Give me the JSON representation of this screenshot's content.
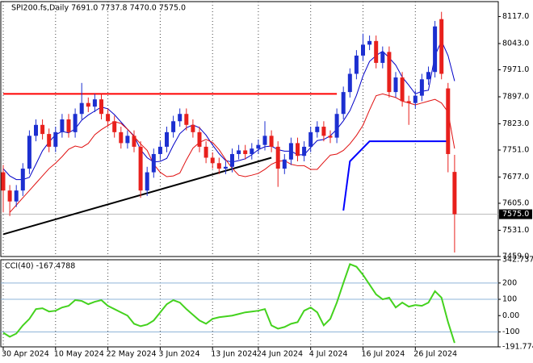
{
  "chart_data": [
    {
      "type": "candlestick",
      "title": "SPI200.fs,Daily  7691.0 7737.8 7470.0 7575.0",
      "categories": [
        "30 Apr 2024",
        null,
        null,
        null,
        null,
        null,
        null,
        null,
        "10 May 2024",
        null,
        null,
        null,
        null,
        null,
        null,
        null,
        "22 May 2024",
        null,
        null,
        null,
        null,
        null,
        null,
        null,
        "3 Jun 2024",
        null,
        null,
        null,
        null,
        null,
        null,
        null,
        "13 Jun 2024",
        null,
        null,
        null,
        null,
        null,
        null,
        "24 Jun 2024",
        null,
        null,
        null,
        null,
        null,
        null,
        null,
        "4 Jul 2024",
        null,
        null,
        null,
        null,
        null,
        null,
        null,
        "16 Jul 2024",
        null,
        null,
        null,
        null,
        null,
        null,
        null,
        "26 Jul 2024",
        null,
        null,
        null,
        null,
        null,
        null
      ],
      "open": [
        7690,
        7640,
        7610,
        7640,
        7700,
        7790,
        7820,
        7795,
        7760,
        7800,
        7835,
        7800,
        7850,
        7880,
        7870,
        7890,
        7850,
        7830,
        7800,
        7770,
        7790,
        7760,
        7640,
        7690,
        7740,
        7760,
        7800,
        7830,
        7850,
        7820,
        7800,
        7760,
        7730,
        7715,
        7700,
        7705,
        7740,
        7750,
        7740,
        7755,
        7765,
        7790,
        7760,
        7700,
        7725,
        7770,
        7735,
        7760,
        7800,
        7815,
        7790,
        7785,
        7850,
        7910,
        7960,
        8010,
        8040,
        8050,
        7990,
        8020,
        7910,
        7950,
        7885,
        7880,
        7900,
        7945,
        7965,
        8110,
        7920,
        7691
      ],
      "high": [
        7710,
        7655,
        7655,
        7715,
        7805,
        7835,
        7835,
        7810,
        7815,
        7850,
        7850,
        7865,
        7935,
        7895,
        7905,
        7905,
        7865,
        7845,
        7815,
        7805,
        7805,
        7775,
        7705,
        7755,
        7775,
        7815,
        7845,
        7865,
        7865,
        7835,
        7815,
        7775,
        7745,
        7730,
        7720,
        7755,
        7765,
        7765,
        7770,
        7780,
        7830,
        7805,
        7775,
        7740,
        7785,
        7785,
        7775,
        7815,
        7830,
        7830,
        7805,
        7865,
        7925,
        7975,
        8025,
        8070,
        8065,
        8065,
        8035,
        8035,
        7965,
        7965,
        7900,
        7915,
        7960,
        7980,
        8105,
        8130,
        7935,
        7737.8
      ],
      "low": [
        7580,
        7570,
        7595,
        7625,
        7685,
        7775,
        7780,
        7745,
        7745,
        7785,
        7785,
        7785,
        7835,
        7855,
        7855,
        7835,
        7815,
        7785,
        7755,
        7755,
        7745,
        7620,
        7625,
        7675,
        7725,
        7745,
        7785,
        7815,
        7805,
        7785,
        7745,
        7715,
        7700,
        7685,
        7685,
        7690,
        7725,
        7725,
        7725,
        7740,
        7750,
        7745,
        7650,
        7685,
        7710,
        7720,
        7720,
        7745,
        7785,
        7775,
        7770,
        7770,
        7835,
        7895,
        7945,
        7995,
        8025,
        7975,
        7975,
        7895,
        7895,
        7870,
        7820,
        7865,
        7885,
        7930,
        7950,
        7945,
        7690,
        7470
      ],
      "close": [
        7640,
        7610,
        7640,
        7700,
        7790,
        7820,
        7795,
        7760,
        7800,
        7835,
        7800,
        7850,
        7880,
        7870,
        7890,
        7850,
        7830,
        7800,
        7770,
        7790,
        7760,
        7640,
        7690,
        7740,
        7760,
        7800,
        7830,
        7850,
        7820,
        7800,
        7760,
        7730,
        7715,
        7700,
        7705,
        7740,
        7750,
        7740,
        7755,
        7765,
        7790,
        7760,
        7700,
        7725,
        7770,
        7735,
        7760,
        7800,
        7815,
        7790,
        7785,
        7850,
        7910,
        7960,
        8010,
        8040,
        8050,
        7990,
        8020,
        7910,
        7950,
        7885,
        7880,
        7900,
        7945,
        7965,
        8090,
        7960,
        7740,
        7575
      ],
      "up_color": "#1c2fd0",
      "down_color": "#e8201c",
      "overlays": [
        {
          "color": "#0000c8",
          "values": [
            7700,
            7680,
            7670,
            7670,
            7676,
            7712,
            7749,
            7773,
            7793,
            7802,
            7798,
            7809,
            7833,
            7847,
            7858,
            7869,
            7864,
            7848,
            7828,
            7808,
            7790,
            7752,
            7730,
            7718,
            7720,
            7728,
            7764,
            7796,
            7812,
            7820,
            7812,
            7792,
            7765,
            7741,
            7722,
            7718,
            7722,
            7727,
            7738,
            7752,
            7760,
            7762,
            7752,
            7748,
            7748,
            7738,
            7738,
            7758,
            7777,
            7780,
            7790,
            7808,
            7831,
            7859,
            7901,
            7954,
            7994,
            8010,
            8022,
            8004,
            7984,
            7951,
            7929,
            7905,
            7912,
            7915,
            8010,
            8050,
            8010,
            7940
          ]
        },
        {
          "color": "#e01010",
          "values": [
            null,
            7580,
            7600,
            7620,
            7640,
            7660,
            7680,
            7700,
            7715,
            7733,
            7753,
            7762,
            7758,
            7769,
            7793,
            7807,
            7818,
            7829,
            7824,
            7808,
            7788,
            7768,
            7750,
            7712,
            7690,
            7678,
            7680,
            7688,
            7724,
            7756,
            7772,
            7780,
            7772,
            7752,
            7725,
            7701,
            7682,
            7678,
            7682,
            7687,
            7698,
            7712,
            7720,
            7722,
            7712,
            7708,
            7708,
            7698,
            7698,
            7718,
            7737,
            7740,
            7750,
            7768,
            7791,
            7819,
            7861,
            7900,
            7905,
            7900,
            7895,
            7885,
            7880,
            7875,
            7880,
            7885,
            7890,
            7880,
            7855,
            7755
          ]
        }
      ],
      "lines": [
        {
          "color": "#ff0000",
          "width": 2,
          "points": [
            [
              0,
              7905
            ],
            [
              51,
              7905
            ]
          ]
        },
        {
          "color": "#000000",
          "width": 2,
          "points": [
            [
              0,
              7520
            ],
            [
              41,
              7730
            ]
          ]
        },
        {
          "color": "#0000ff",
          "width": 2,
          "points": [
            [
              52,
              7585
            ],
            [
              53,
              7720
            ],
            [
              56,
              7775
            ],
            [
              68,
              7775
            ]
          ]
        }
      ],
      "last": {
        "value": 7575,
        "label": "7575.0"
      },
      "ylim": [
        7459,
        8158
      ],
      "yticks": [
        {
          "value": 8117,
          "label": "8117.0"
        },
        {
          "value": 8043,
          "label": "8043.0"
        },
        {
          "value": 7971,
          "label": "7971.0"
        },
        {
          "value": 7897,
          "label": "7897.0"
        },
        {
          "value": 7823,
          "label": "7823.0"
        },
        {
          "value": 7751,
          "label": "7751.0"
        },
        {
          "value": 7677,
          "label": "7677.0"
        },
        {
          "value": 7605,
          "label": "7605.0"
        },
        {
          "value": 7531,
          "label": "7531.0"
        },
        {
          "value": 7459,
          "label": "7459.0"
        }
      ],
      "grid": true
    },
    {
      "type": "line",
      "title": "CCI(40) -167.4788",
      "color": "#44d21e",
      "values": [
        -105,
        -130,
        -110,
        -60,
        -20,
        40,
        45,
        25,
        30,
        50,
        60,
        95,
        90,
        70,
        85,
        95,
        60,
        40,
        20,
        0,
        -50,
        -65,
        -55,
        -30,
        20,
        70,
        95,
        80,
        40,
        5,
        -30,
        -50,
        -20,
        -10,
        -5,
        0,
        10,
        20,
        25,
        30,
        40,
        -60,
        -80,
        -70,
        -50,
        -40,
        30,
        50,
        20,
        -60,
        -20,
        80,
        200,
        316,
        300,
        250,
        190,
        130,
        100,
        110,
        50,
        80,
        55,
        65,
        60,
        80,
        150,
        110,
        -40,
        -167.4788
      ],
      "levels": [
        200,
        100,
        -100
      ],
      "level_color": "#8fb4d8",
      "ylim": [
        -191.7746,
        342.7377
      ],
      "yticks": [
        342.7377,
        200,
        100,
        {
          "value": 0,
          "label": "0.00"
        },
        -100,
        -191.7746
      ]
    }
  ]
}
